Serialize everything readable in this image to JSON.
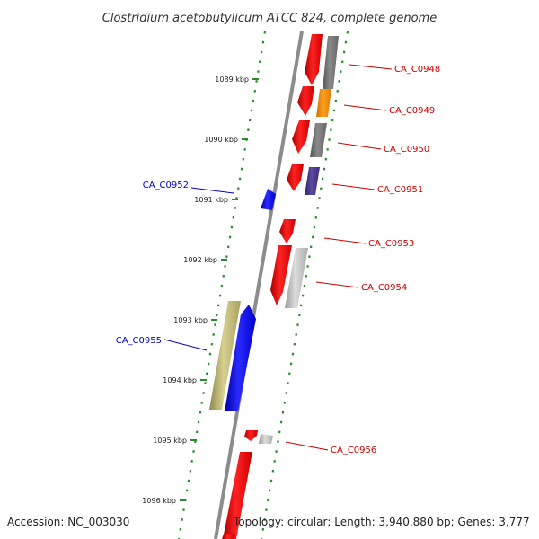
{
  "title": "Clostridium acetobutylicum ATCC 824, complete genome",
  "footer": {
    "accession": "Accession: NC_003030",
    "topology": "Topology: circular; Length: 3,940,880 bp; Genes: 3,777"
  },
  "ticks": [
    {
      "label": "1089 kbp",
      "kbp": 1089
    },
    {
      "label": "1090 kbp",
      "kbp": 1090
    },
    {
      "label": "1091 kbp",
      "kbp": 1091
    },
    {
      "label": "1092 kbp",
      "kbp": 1092
    },
    {
      "label": "1093 kbp",
      "kbp": 1093
    },
    {
      "label": "1094 kbp",
      "kbp": 1094
    },
    {
      "label": "1095 kbp",
      "kbp": 1095
    },
    {
      "label": "1096 kbp",
      "kbp": 1096
    }
  ],
  "labels": [
    {
      "name": "CA_C0948",
      "strand": "forward",
      "color": "#cc0000"
    },
    {
      "name": "CA_C0949",
      "strand": "forward",
      "color": "#cc0000"
    },
    {
      "name": "CA_C0950",
      "strand": "forward",
      "color": "#cc0000"
    },
    {
      "name": "CA_C0951",
      "strand": "forward",
      "color": "#cc0000"
    },
    {
      "name": "CA_C0952",
      "strand": "reverse",
      "color": "#0000cc"
    },
    {
      "name": "CA_C0953",
      "strand": "forward",
      "color": "#cc0000"
    },
    {
      "name": "CA_C0954",
      "strand": "forward",
      "color": "#cc0000"
    },
    {
      "name": "CA_C0955",
      "strand": "reverse",
      "color": "#0000cc"
    },
    {
      "name": "CA_C0956",
      "strand": "forward",
      "color": "#cc0000"
    }
  ],
  "colors": {
    "backbone": "#8c8c8c",
    "dots": "#2d8a2d",
    "forward_gene": "#ee1111",
    "reverse_gene": "#1111ee",
    "gray_feature": "#777777",
    "light_gray_feature": "#bbbbbb",
    "orange_feature": "#ff8c00",
    "purple_feature": "#4b3a8c",
    "khaki_feature": "#c9c07a"
  }
}
